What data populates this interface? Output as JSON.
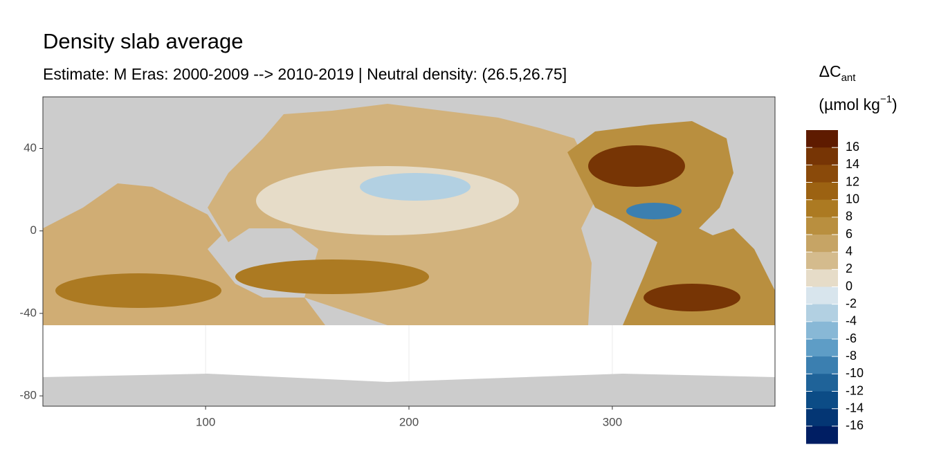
{
  "chart_data": {
    "type": "raster-map",
    "title": "Density slab average",
    "subtitle": "Estimate: M Eras: 2000-2009 --> 2010-2019 | Neutral density: (26.5,26.75]",
    "xlim": [
      20,
      380
    ],
    "xticks": [
      100,
      200,
      300
    ],
    "ylim": [
      -85,
      65
    ],
    "yticks": [
      40,
      0,
      -40,
      -80
    ],
    "grid": true,
    "legend_title": {
      "main": "ΔC",
      "sub": "ant"
    },
    "legend_unit": {
      "main": "(µmol kg",
      "sup": "−1",
      "close": ")"
    },
    "colorbar": {
      "breaks": [
        16,
        14,
        12,
        10,
        8,
        6,
        4,
        2,
        0,
        -2,
        -4,
        -6,
        -8,
        -10,
        -12,
        -14,
        -16
      ],
      "colors": [
        "#5e1b00",
        "#773505",
        "#8a4a0a",
        "#9c6212",
        "#ac7a22",
        "#b98f3f",
        "#c6a465",
        "#d4bb8d",
        "#e6dcc8",
        "#d8e5ed",
        "#b2d0e2",
        "#88b8d6",
        "#5e9dc6",
        "#3b7fb0",
        "#1f6399",
        "#0c4c86",
        "#043674",
        "#001e63"
      ]
    }
  }
}
